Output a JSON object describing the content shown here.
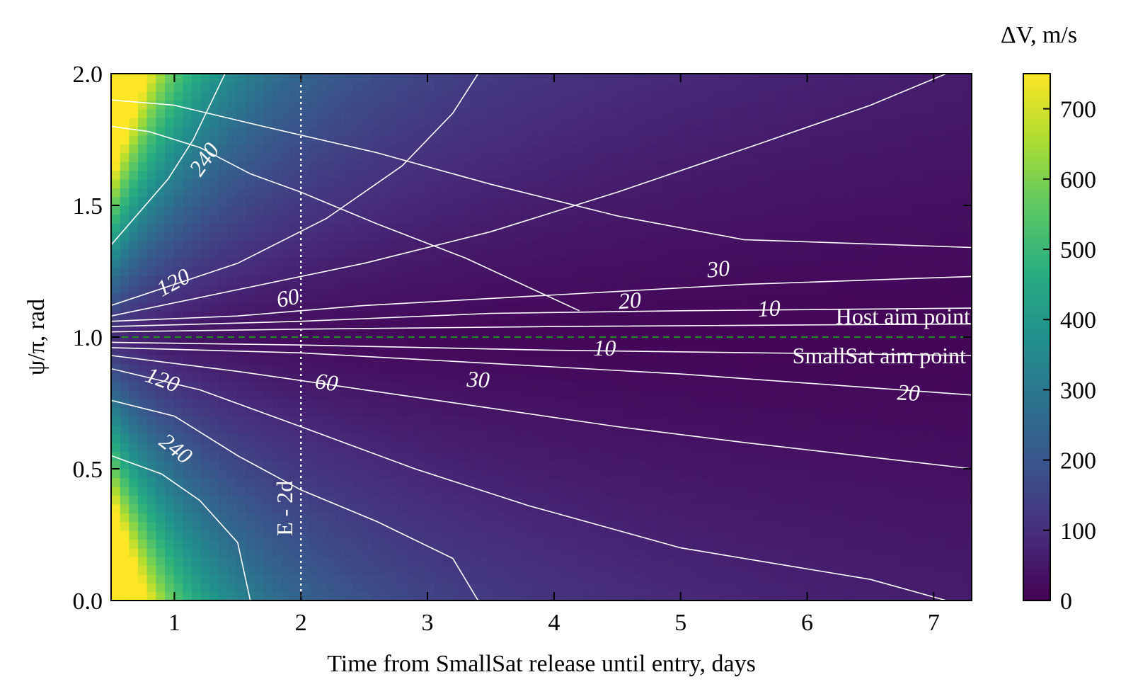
{
  "chart_data": {
    "type": "contour",
    "xlabel": "Time from SmallSat release until entry, days",
    "ylabel": "ψ/π, rad",
    "xlim": [
      0.5,
      7.3
    ],
    "ylim": [
      0.0,
      2.0
    ],
    "xticks": [
      "1",
      "2",
      "3",
      "4",
      "5",
      "6",
      "7"
    ],
    "yticks": [
      "0.0",
      "0.5",
      "1.0",
      "1.5",
      "2.0"
    ],
    "colorbar": {
      "label": "ΔV, m/s",
      "range": [
        0,
        750
      ],
      "ticks": [
        "0",
        "100",
        "200",
        "300",
        "400",
        "500",
        "600",
        "700"
      ],
      "colormap": [
        "#440154",
        "#472d7b",
        "#3b528b",
        "#2c728e",
        "#21918c",
        "#28ae80",
        "#5ec962",
        "#addc30",
        "#fde725"
      ]
    },
    "contour_levels": [
      "10",
      "20",
      "30",
      "60",
      "120",
      "240"
    ],
    "contour_labels_shown": [
      "240",
      "120",
      "60",
      "30",
      "20",
      "10",
      "10",
      "30",
      "20",
      "60",
      "120",
      "240"
    ],
    "reference_lines": [
      {
        "label": "E - 2d",
        "x": 2.0,
        "style": "dotted",
        "color": "#ffffff"
      },
      {
        "label": "Host aim point",
        "y": 1.0,
        "style": "dashed",
        "color": "#1f8a1f"
      }
    ],
    "annotations": [
      "Host aim point",
      "SmallSat aim point"
    ]
  }
}
